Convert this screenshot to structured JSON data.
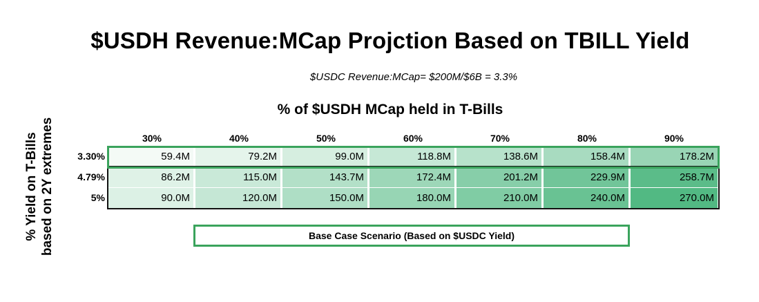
{
  "title": "$USDH Revenue:MCap Projction Based on TBILL Yield",
  "subtitle": "$USDC Revenue:MCap= $200M/$6B = 3.3%",
  "chart_data": {
    "type": "heatmap",
    "title": "$USDH Revenue:MCap Projction Based on TBILL Yield",
    "subtitle": "$USDC Revenue:MCap= $200M/$6B = 3.3%",
    "xlabel": "% of $USDH MCap held in T-Bills",
    "ylabel_lines": [
      "% Yield on T-Bills",
      "based on 2Y extremes"
    ],
    "columns": [
      "30%",
      "40%",
      "50%",
      "60%",
      "70%",
      "80%",
      "90%"
    ],
    "rows": [
      {
        "label": "3.30%",
        "values": [
          59.4,
          79.2,
          99.0,
          118.8,
          138.6,
          158.4,
          178.2
        ],
        "text": [
          "59.4M",
          "79.2M",
          "99.0M",
          "118.8M",
          "138.6M",
          "158.4M",
          "178.2M"
        ]
      },
      {
        "label": "4.79%",
        "values": [
          86.2,
          115.0,
          143.7,
          172.4,
          201.2,
          229.9,
          258.7
        ],
        "text": [
          "86.2M",
          "115.0M",
          "143.7M",
          "172.4M",
          "201.2M",
          "229.9M",
          "258.7M"
        ]
      },
      {
        "label": "5%",
        "values": [
          90.0,
          120.0,
          150.0,
          180.0,
          210.0,
          240.0,
          270.0
        ],
        "text": [
          "90.0M",
          "120.0M",
          "150.0M",
          "180.0M",
          "210.0M",
          "240.0M",
          "270.0M"
        ]
      }
    ],
    "value_range": [
      59.4,
      270.0
    ],
    "color_low": "#f4faf6",
    "color_high": "#52b983",
    "highlight_row": "3.30%",
    "highlight_color": "#3aa35c",
    "legend": "Base Case Scenario (Based on $USDC Yield)"
  }
}
